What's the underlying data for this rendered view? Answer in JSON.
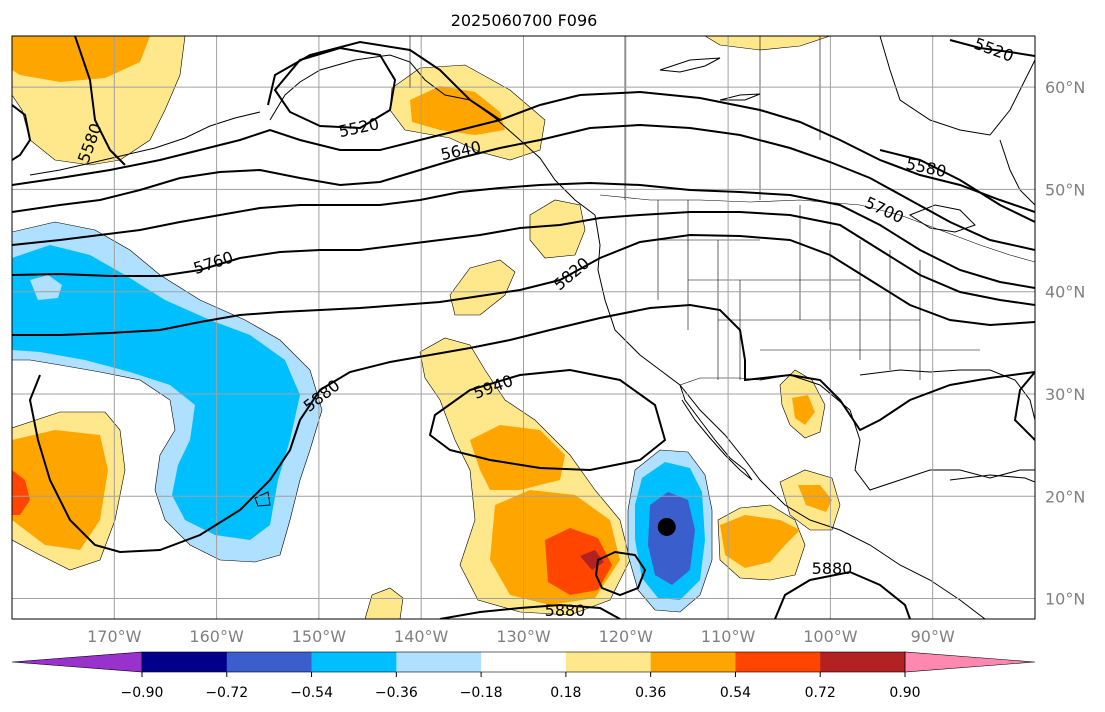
{
  "title": "2025060700 F096",
  "longitude_labels": [
    "170°W",
    "160°W",
    "150°W",
    "140°W",
    "130°W",
    "120°W",
    "110°W",
    "100°W",
    "90°W"
  ],
  "latitude_labels": [
    "60°N",
    "50°N",
    "40°N",
    "30°N",
    "20°N",
    "10°N"
  ],
  "contour_labels": [
    "5520",
    "5640",
    "5580",
    "5580",
    "5520",
    "5700",
    "5760",
    "5820",
    "5880",
    "5940",
    "5880",
    "5880"
  ],
  "marker": {
    "description": "black-dot",
    "lon": -116,
    "lat": 17
  },
  "colorbar": {
    "ticks": [
      "−0.90",
      "−0.72",
      "−0.54",
      "−0.36",
      "−0.18",
      "0.18",
      "0.36",
      "0.54",
      "0.72",
      "0.90"
    ],
    "colors": [
      "#9932cc",
      "#00008b",
      "#3a5fcd",
      "#00bfff",
      "#b0e0ff",
      "#ffffff",
      "#ffe88c",
      "#ffa500",
      "#ff4500",
      "#b22222",
      "#ff88b0"
    ]
  },
  "colors": {
    "pos1": "#ffe88c",
    "pos2": "#ffa500",
    "pos3": "#ff4500",
    "pos4": "#b22222",
    "neg1": "#b0e0ff",
    "neg2": "#00bfff",
    "neg3": "#3a5fcd",
    "land": "#000000",
    "grid": "#a0a0a0"
  }
}
